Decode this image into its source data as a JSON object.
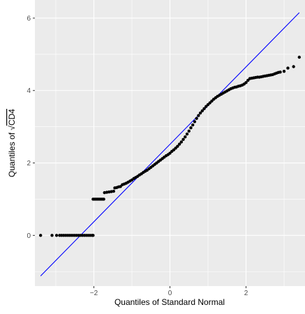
{
  "chart_data": {
    "type": "scatter",
    "title": "",
    "xlabel": "Quantiles of Standard Normal",
    "ylabel_prefix": "Quantiles of ",
    "ylabel_root": "√",
    "ylabel_term": "CD4",
    "xlim": [
      -3.55,
      3.55
    ],
    "ylim": [
      -1.4,
      6.5
    ],
    "x_ticks": [
      -2,
      0,
      2
    ],
    "x_tick_labels": [
      "−2",
      "0",
      "2"
    ],
    "y_ticks": [
      0,
      2,
      4,
      6
    ],
    "y_tick_labels": [
      "0",
      "2",
      "4",
      "6"
    ],
    "grid": true,
    "legend": "none",
    "colors": {
      "panel": "#ebebeb",
      "grid": "#ffffff",
      "points": "#000000",
      "reference_line": "#0000ff",
      "tick_text": "#4d4d4d"
    },
    "reference_line": {
      "x": [
        -3.4,
        3.4
      ],
      "y": [
        -1.12,
        6.15
      ]
    },
    "series": [
      {
        "points": [
          [
            -3.4,
            0.0
          ],
          [
            -3.1,
            0.0
          ],
          [
            -2.98,
            0.0
          ],
          [
            -2.9,
            0.0
          ],
          [
            -2.85,
            0.0
          ],
          [
            -2.8,
            0.0
          ],
          [
            -2.75,
            0.0
          ],
          [
            -2.7,
            0.0
          ],
          [
            -2.65,
            0.0
          ],
          [
            -2.6,
            0.0
          ],
          [
            -2.55,
            0.0
          ],
          [
            -2.5,
            0.0
          ],
          [
            -2.45,
            0.0
          ],
          [
            -2.4,
            0.0
          ],
          [
            -2.35,
            0.0
          ],
          [
            -2.3,
            0.0
          ],
          [
            -2.25,
            0.0
          ],
          [
            -2.2,
            0.0
          ],
          [
            -2.15,
            0.0
          ],
          [
            -2.1,
            0.0
          ],
          [
            -2.05,
            0.0
          ],
          [
            -2.02,
            0.0
          ],
          [
            -2.02,
            1.0
          ],
          [
            -1.98,
            1.0
          ],
          [
            -1.94,
            1.0
          ],
          [
            -1.9,
            1.0
          ],
          [
            -1.86,
            1.0
          ],
          [
            -1.82,
            1.0
          ],
          [
            -1.78,
            1.0
          ],
          [
            -1.74,
            1.0
          ],
          [
            -1.72,
            1.18
          ],
          [
            -1.66,
            1.19
          ],
          [
            -1.6,
            1.2
          ],
          [
            -1.54,
            1.21
          ],
          [
            -1.48,
            1.22
          ],
          [
            -1.45,
            1.31
          ],
          [
            -1.4,
            1.32
          ],
          [
            -1.35,
            1.34
          ],
          [
            -1.3,
            1.35
          ],
          [
            -1.25,
            1.4
          ],
          [
            -1.2,
            1.42
          ],
          [
            -1.15,
            1.44
          ],
          [
            -1.1,
            1.47
          ],
          [
            -1.05,
            1.5
          ],
          [
            -1.0,
            1.53
          ],
          [
            -0.95,
            1.57
          ],
          [
            -0.9,
            1.6
          ],
          [
            -0.85,
            1.63
          ],
          [
            -0.8,
            1.67
          ],
          [
            -0.75,
            1.7
          ],
          [
            -0.7,
            1.74
          ],
          [
            -0.65,
            1.77
          ],
          [
            -0.6,
            1.8
          ],
          [
            -0.55,
            1.84
          ],
          [
            -0.5,
            1.88
          ],
          [
            -0.45,
            1.92
          ],
          [
            -0.4,
            1.96
          ],
          [
            -0.35,
            2.0
          ],
          [
            -0.3,
            2.04
          ],
          [
            -0.25,
            2.08
          ],
          [
            -0.2,
            2.12
          ],
          [
            -0.15,
            2.16
          ],
          [
            -0.1,
            2.2
          ],
          [
            -0.05,
            2.23
          ],
          [
            0.0,
            2.27
          ],
          [
            0.05,
            2.32
          ],
          [
            0.1,
            2.36
          ],
          [
            0.15,
            2.41
          ],
          [
            0.2,
            2.46
          ],
          [
            0.25,
            2.52
          ],
          [
            0.3,
            2.58
          ],
          [
            0.35,
            2.65
          ],
          [
            0.4,
            2.72
          ],
          [
            0.45,
            2.8
          ],
          [
            0.5,
            2.88
          ],
          [
            0.55,
            2.97
          ],
          [
            0.6,
            3.05
          ],
          [
            0.65,
            3.14
          ],
          [
            0.7,
            3.23
          ],
          [
            0.75,
            3.31
          ],
          [
            0.8,
            3.38
          ],
          [
            0.85,
            3.44
          ],
          [
            0.9,
            3.5
          ],
          [
            0.95,
            3.56
          ],
          [
            1.0,
            3.61
          ],
          [
            1.05,
            3.66
          ],
          [
            1.1,
            3.71
          ],
          [
            1.15,
            3.76
          ],
          [
            1.2,
            3.8
          ],
          [
            1.25,
            3.84
          ],
          [
            1.3,
            3.87
          ],
          [
            1.35,
            3.9
          ],
          [
            1.4,
            3.93
          ],
          [
            1.45,
            3.96
          ],
          [
            1.5,
            3.99
          ],
          [
            1.55,
            4.02
          ],
          [
            1.6,
            4.05
          ],
          [
            1.65,
            4.07
          ],
          [
            1.7,
            4.09
          ],
          [
            1.75,
            4.1
          ],
          [
            1.8,
            4.12
          ],
          [
            1.85,
            4.13
          ],
          [
            1.9,
            4.15
          ],
          [
            1.95,
            4.18
          ],
          [
            2.0,
            4.22
          ],
          [
            2.05,
            4.28
          ],
          [
            2.1,
            4.33
          ],
          [
            2.15,
            4.34
          ],
          [
            2.2,
            4.35
          ],
          [
            2.25,
            4.36
          ],
          [
            2.3,
            4.37
          ],
          [
            2.35,
            4.37
          ],
          [
            2.4,
            4.38
          ],
          [
            2.45,
            4.39
          ],
          [
            2.5,
            4.4
          ],
          [
            2.55,
            4.41
          ],
          [
            2.6,
            4.42
          ],
          [
            2.65,
            4.43
          ],
          [
            2.7,
            4.44
          ],
          [
            2.75,
            4.46
          ],
          [
            2.8,
            4.48
          ],
          [
            2.85,
            4.5
          ],
          [
            2.9,
            4.51
          ],
          [
            3.0,
            4.53
          ],
          [
            3.1,
            4.62
          ],
          [
            3.25,
            4.66
          ],
          [
            3.4,
            4.92
          ]
        ]
      }
    ]
  }
}
